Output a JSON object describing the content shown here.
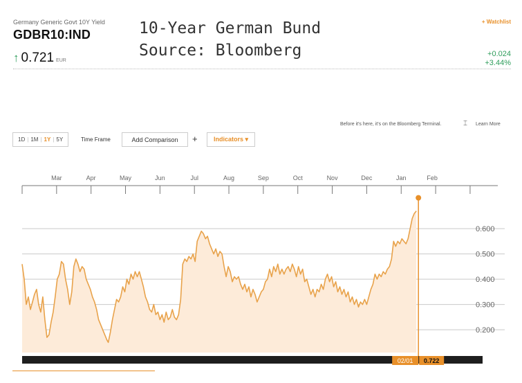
{
  "header": {
    "subtitle": "Germany Generic Govt 10Y Yield",
    "ticker": "GDBR10:IND",
    "price": "0.721",
    "currency": "EUR",
    "up_arrow": "↑",
    "change_abs": "+0.024",
    "change_pct": "+3.44%",
    "watchlist": "+ Watchlist"
  },
  "overlay_title": {
    "line1": "10-Year German Bund",
    "line2": "Source: Bloomberg"
  },
  "toolbar": {
    "ranges": [
      "1D",
      "1M",
      "1Y",
      "5Y"
    ],
    "active_range": "1Y",
    "time_frame": "Time Frame",
    "add_comparison": "Add Comparison",
    "plus": "+",
    "indicators": "Indicators ▾",
    "terminal_note": "Before it's here, it's on the Bloomberg Terminal.",
    "terminal_icon": "terminal-icon",
    "learn_more": "Learn More"
  },
  "colors": {
    "line": "#e8a24a",
    "fill": "#fdebd9",
    "accent": "#e8902a",
    "positive": "#2e9d5b",
    "timeline": "#1e1e1e"
  },
  "chart_data": {
    "type": "area",
    "title": "",
    "xlabel": "",
    "ylabel": "",
    "ylim": [
      0.11,
      0.71
    ],
    "yticks": [
      "0.200",
      "0.300",
      "0.400",
      "0.500",
      "0.600"
    ],
    "ytick_values": [
      0.2,
      0.3,
      0.4,
      0.5,
      0.6
    ],
    "months": [
      "Mar",
      "Apr",
      "May",
      "Jun",
      "Jul",
      "Aug",
      "Sep",
      "Oct",
      "Nov",
      "Dec",
      "Jan",
      "Feb"
    ],
    "month_positions": [
      1.5,
      2.5,
      3.5,
      4.5,
      5.5,
      6.5,
      7.5,
      8.5,
      9.5,
      10.5,
      11.5,
      12.4
    ],
    "x_range": [
      0.5,
      13.1
    ],
    "current_date_label": "02/01",
    "current_value_label": "0.722",
    "current_value": 0.722,
    "series": [
      {
        "values": [
          [
            0.5,
            0.46
          ],
          [
            0.56,
            0.4
          ],
          [
            0.62,
            0.3
          ],
          [
            0.68,
            0.33
          ],
          [
            0.74,
            0.28
          ],
          [
            0.8,
            0.31
          ],
          [
            0.86,
            0.34
          ],
          [
            0.92,
            0.36
          ],
          [
            0.98,
            0.3
          ],
          [
            1.04,
            0.27
          ],
          [
            1.1,
            0.33
          ],
          [
            1.16,
            0.24
          ],
          [
            1.22,
            0.17
          ],
          [
            1.28,
            0.18
          ],
          [
            1.34,
            0.23
          ],
          [
            1.4,
            0.27
          ],
          [
            1.46,
            0.33
          ],
          [
            1.52,
            0.4
          ],
          [
            1.58,
            0.42
          ],
          [
            1.64,
            0.47
          ],
          [
            1.7,
            0.46
          ],
          [
            1.76,
            0.4
          ],
          [
            1.82,
            0.36
          ],
          [
            1.88,
            0.3
          ],
          [
            1.94,
            0.35
          ],
          [
            2.0,
            0.45
          ],
          [
            2.06,
            0.48
          ],
          [
            2.12,
            0.46
          ],
          [
            2.18,
            0.43
          ],
          [
            2.24,
            0.45
          ],
          [
            2.3,
            0.44
          ],
          [
            2.36,
            0.4
          ],
          [
            2.42,
            0.38
          ],
          [
            2.48,
            0.36
          ],
          [
            2.54,
            0.33
          ],
          [
            2.6,
            0.31
          ],
          [
            2.66,
            0.28
          ],
          [
            2.72,
            0.24
          ],
          [
            2.78,
            0.22
          ],
          [
            2.84,
            0.2
          ],
          [
            2.9,
            0.18
          ],
          [
            2.96,
            0.16
          ],
          [
            3.0,
            0.15
          ],
          [
            3.06,
            0.19
          ],
          [
            3.12,
            0.24
          ],
          [
            3.18,
            0.28
          ],
          [
            3.24,
            0.32
          ],
          [
            3.3,
            0.31
          ],
          [
            3.36,
            0.33
          ],
          [
            3.42,
            0.37
          ],
          [
            3.48,
            0.35
          ],
          [
            3.54,
            0.4
          ],
          [
            3.6,
            0.38
          ],
          [
            3.66,
            0.42
          ],
          [
            3.72,
            0.4
          ],
          [
            3.78,
            0.43
          ],
          [
            3.84,
            0.41
          ],
          [
            3.9,
            0.43
          ],
          [
            3.96,
            0.4
          ],
          [
            4.02,
            0.37
          ],
          [
            4.08,
            0.33
          ],
          [
            4.14,
            0.31
          ],
          [
            4.2,
            0.28
          ],
          [
            4.26,
            0.27
          ],
          [
            4.32,
            0.3
          ],
          [
            4.38,
            0.26
          ],
          [
            4.44,
            0.27
          ],
          [
            4.5,
            0.24
          ],
          [
            4.56,
            0.26
          ],
          [
            4.62,
            0.23
          ],
          [
            4.68,
            0.27
          ],
          [
            4.74,
            0.24
          ],
          [
            4.8,
            0.25
          ],
          [
            4.86,
            0.28
          ],
          [
            4.92,
            0.25
          ],
          [
            4.98,
            0.24
          ],
          [
            5.04,
            0.26
          ],
          [
            5.1,
            0.32
          ],
          [
            5.16,
            0.46
          ],
          [
            5.22,
            0.48
          ],
          [
            5.28,
            0.47
          ],
          [
            5.34,
            0.49
          ],
          [
            5.4,
            0.48
          ],
          [
            5.46,
            0.5
          ],
          [
            5.52,
            0.47
          ],
          [
            5.58,
            0.55
          ],
          [
            5.64,
            0.57
          ],
          [
            5.7,
            0.59
          ],
          [
            5.76,
            0.58
          ],
          [
            5.82,
            0.56
          ],
          [
            5.88,
            0.57
          ],
          [
            5.94,
            0.54
          ],
          [
            6.0,
            0.52
          ],
          [
            6.06,
            0.5
          ],
          [
            6.12,
            0.52
          ],
          [
            6.18,
            0.49
          ],
          [
            6.24,
            0.51
          ],
          [
            6.3,
            0.5
          ],
          [
            6.36,
            0.45
          ],
          [
            6.42,
            0.41
          ],
          [
            6.48,
            0.45
          ],
          [
            6.54,
            0.43
          ],
          [
            6.6,
            0.39
          ],
          [
            6.66,
            0.41
          ],
          [
            6.72,
            0.4
          ],
          [
            6.78,
            0.41
          ],
          [
            6.84,
            0.38
          ],
          [
            6.9,
            0.36
          ],
          [
            6.96,
            0.38
          ],
          [
            7.02,
            0.35
          ],
          [
            7.08,
            0.37
          ],
          [
            7.14,
            0.33
          ],
          [
            7.2,
            0.36
          ],
          [
            7.26,
            0.34
          ],
          [
            7.32,
            0.31
          ],
          [
            7.38,
            0.33
          ],
          [
            7.44,
            0.35
          ],
          [
            7.5,
            0.36
          ],
          [
            7.56,
            0.39
          ],
          [
            7.62,
            0.4
          ],
          [
            7.68,
            0.44
          ],
          [
            7.74,
            0.41
          ],
          [
            7.8,
            0.45
          ],
          [
            7.86,
            0.43
          ],
          [
            7.92,
            0.46
          ],
          [
            7.98,
            0.42
          ],
          [
            8.04,
            0.44
          ],
          [
            8.1,
            0.42
          ],
          [
            8.16,
            0.44
          ],
          [
            8.22,
            0.45
          ],
          [
            8.28,
            0.43
          ],
          [
            8.34,
            0.46
          ],
          [
            8.4,
            0.44
          ],
          [
            8.46,
            0.41
          ],
          [
            8.52,
            0.45
          ],
          [
            8.58,
            0.42
          ],
          [
            8.64,
            0.44
          ],
          [
            8.7,
            0.39
          ],
          [
            8.76,
            0.4
          ],
          [
            8.82,
            0.37
          ],
          [
            8.88,
            0.34
          ],
          [
            8.94,
            0.36
          ],
          [
            9.0,
            0.33
          ],
          [
            9.06,
            0.36
          ],
          [
            9.12,
            0.35
          ],
          [
            9.18,
            0.38
          ],
          [
            9.24,
            0.36
          ],
          [
            9.3,
            0.4
          ],
          [
            9.36,
            0.42
          ],
          [
            9.42,
            0.39
          ],
          [
            9.48,
            0.41
          ],
          [
            9.54,
            0.37
          ],
          [
            9.6,
            0.39
          ],
          [
            9.66,
            0.35
          ],
          [
            9.72,
            0.37
          ],
          [
            9.78,
            0.34
          ],
          [
            9.84,
            0.36
          ],
          [
            9.9,
            0.33
          ],
          [
            9.96,
            0.35
          ],
          [
            10.02,
            0.31
          ],
          [
            10.08,
            0.33
          ],
          [
            10.14,
            0.3
          ],
          [
            10.2,
            0.32
          ],
          [
            10.26,
            0.29
          ],
          [
            10.32,
            0.31
          ],
          [
            10.38,
            0.3
          ],
          [
            10.44,
            0.32
          ],
          [
            10.5,
            0.3
          ],
          [
            10.56,
            0.33
          ],
          [
            10.62,
            0.36
          ],
          [
            10.68,
            0.38
          ],
          [
            10.74,
            0.42
          ],
          [
            10.8,
            0.4
          ],
          [
            10.86,
            0.42
          ],
          [
            10.92,
            0.41
          ],
          [
            10.98,
            0.43
          ],
          [
            11.04,
            0.42
          ],
          [
            11.1,
            0.44
          ],
          [
            11.16,
            0.45
          ],
          [
            11.22,
            0.48
          ],
          [
            11.28,
            0.55
          ],
          [
            11.34,
            0.53
          ],
          [
            11.4,
            0.55
          ],
          [
            11.46,
            0.54
          ],
          [
            11.52,
            0.56
          ],
          [
            11.58,
            0.55
          ],
          [
            11.64,
            0.54
          ],
          [
            11.7,
            0.56
          ],
          [
            11.76,
            0.6
          ],
          [
            11.82,
            0.64
          ],
          [
            11.88,
            0.66
          ],
          [
            11.94,
            0.67
          ]
        ]
      }
    ]
  }
}
